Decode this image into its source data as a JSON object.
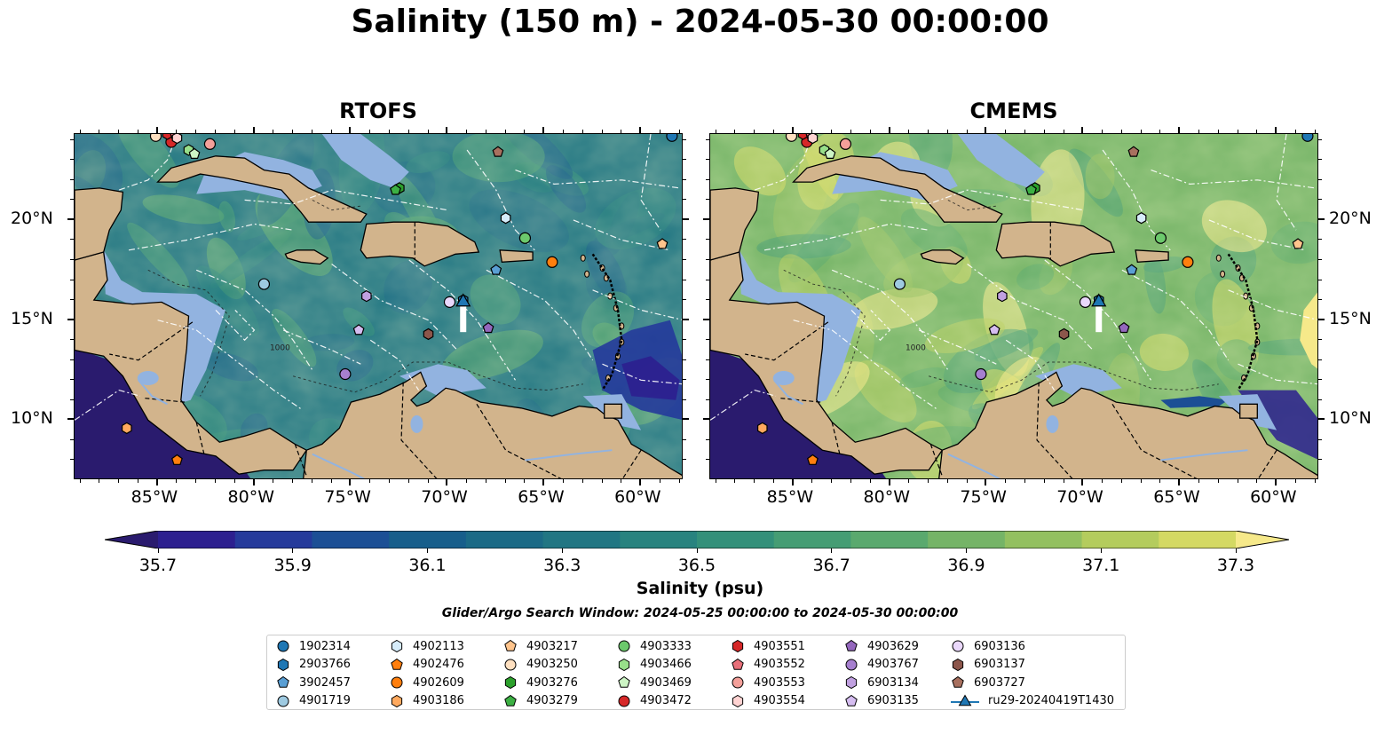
{
  "title": "Salinity (150 m) - 2024-05-30 00:00:00",
  "panels": [
    {
      "name": "RTOFS",
      "style": "rtofs"
    },
    {
      "name": "CMEMS",
      "style": "cmems"
    }
  ],
  "map": {
    "lon_range": [
      -89.3,
      -57.8
    ],
    "lat_range": [
      7.0,
      24.3
    ],
    "lon_ticks": [
      {
        "v": -85,
        "label": "85°W"
      },
      {
        "v": -80,
        "label": "80°W"
      },
      {
        "v": -75,
        "label": "75°W"
      },
      {
        "v": -70,
        "label": "70°W"
      },
      {
        "v": -65,
        "label": "65°W"
      },
      {
        "v": -60,
        "label": "60°W"
      }
    ],
    "lat_ticks": [
      {
        "v": 20,
        "label": "20°N"
      },
      {
        "v": 15,
        "label": "15°N"
      },
      {
        "v": 10,
        "label": "10°N"
      }
    ],
    "land_color": "#d2b48c",
    "shelf_color": "#92b3e0",
    "contour_label": "1000"
  },
  "colorbar": {
    "min": 35.6,
    "max": 37.4,
    "step": 0.1,
    "ticks": [
      "35.7",
      "35.9",
      "36.1",
      "36.3",
      "36.5",
      "36.7",
      "36.9",
      "37.1",
      "37.3"
    ],
    "label": "Salinity (psu)",
    "colors": [
      "#2a1b6e",
      "#2c1f8f",
      "#253a9b",
      "#1c4f95",
      "#175e8b",
      "#1b6a86",
      "#217683",
      "#28837f",
      "#33907a",
      "#459d74",
      "#5aa96e",
      "#75b467",
      "#93c060",
      "#b4cc5d",
      "#d4d963",
      "#f6e98a"
    ]
  },
  "search_window": "Glider/Argo Search Window: 2024-05-25 00:00:00 to 2024-05-30 00:00:00",
  "legend": [
    {
      "label": "1902314",
      "color": "#1f77b4",
      "marker": "circle"
    },
    {
      "label": "2903766",
      "color": "#1f77b4",
      "marker": "hexagon"
    },
    {
      "label": "3902457",
      "color": "#5a9fd4",
      "marker": "pentagon"
    },
    {
      "label": "4901719",
      "color": "#9ecae1",
      "marker": "circle"
    },
    {
      "label": "4902113",
      "color": "#d6ecfa",
      "marker": "hexagon"
    },
    {
      "label": "4902476",
      "color": "#ff7f0e",
      "marker": "pentagon"
    },
    {
      "label": "4902609",
      "color": "#ff7f0e",
      "marker": "circle"
    },
    {
      "label": "4903186",
      "color": "#ffa95e",
      "marker": "hexagon"
    },
    {
      "label": "4903217",
      "color": "#ffc48c",
      "marker": "pentagon"
    },
    {
      "label": "4903250",
      "color": "#ffe0c0",
      "marker": "circle"
    },
    {
      "label": "4903276",
      "color": "#2ca02c",
      "marker": "hexagon"
    },
    {
      "label": "4903279",
      "color": "#3cb043",
      "marker": "pentagon"
    },
    {
      "label": "4903333",
      "color": "#6cc96c",
      "marker": "circle"
    },
    {
      "label": "4903466",
      "color": "#98df8a",
      "marker": "hexagon"
    },
    {
      "label": "4903469",
      "color": "#cdf5c5",
      "marker": "pentagon"
    },
    {
      "label": "4903472",
      "color": "#d62728",
      "marker": "circle"
    },
    {
      "label": "4903551",
      "color": "#d62728",
      "marker": "hexagon"
    },
    {
      "label": "4903552",
      "color": "#e8707a",
      "marker": "pentagon"
    },
    {
      "label": "4903553",
      "color": "#f4a09a",
      "marker": "circle"
    },
    {
      "label": "4903554",
      "color": "#ffd3d2",
      "marker": "hexagon"
    },
    {
      "label": "4903629",
      "color": "#9467bd",
      "marker": "pentagon"
    },
    {
      "label": "4903767",
      "color": "#a67fcf",
      "marker": "circle"
    },
    {
      "label": "6903134",
      "color": "#c0a0e0",
      "marker": "hexagon"
    },
    {
      "label": "6903135",
      "color": "#d5bdf0",
      "marker": "pentagon"
    },
    {
      "label": "6903136",
      "color": "#ead8fb",
      "marker": "circle"
    },
    {
      "label": "6903137",
      "color": "#8c564b",
      "marker": "hexagon"
    },
    {
      "label": "6903727",
      "color": "#a8705f",
      "marker": "pentagon"
    },
    {
      "label": "ru29-20240419T1430",
      "color": "#1f77b4",
      "marker": "triangle"
    }
  ],
  "floats": [
    {
      "id": "1902314",
      "lon": -58.4,
      "lat": 24.2
    },
    {
      "id": "2903766",
      "lon": -69.2,
      "lat": 16.0
    },
    {
      "id": "3902457",
      "lon": -67.5,
      "lat": 17.5
    },
    {
      "id": "4901719",
      "lon": -79.5,
      "lat": 16.8
    },
    {
      "id": "4902113",
      "lon": -67.0,
      "lat": 20.1
    },
    {
      "id": "4902476",
      "lon": -84.0,
      "lat": 8.0
    },
    {
      "id": "4902609",
      "lon": -64.6,
      "lat": 17.9
    },
    {
      "id": "4903186",
      "lon": -86.6,
      "lat": 9.6
    },
    {
      "id": "4903217",
      "lon": -58.9,
      "lat": 18.8
    },
    {
      "id": "4903250",
      "lon": -85.1,
      "lat": 24.2
    },
    {
      "id": "4903276",
      "lon": -72.5,
      "lat": 21.6
    },
    {
      "id": "4903279",
      "lon": -72.7,
      "lat": 21.5
    },
    {
      "id": "4903333",
      "lon": -66.0,
      "lat": 19.1
    },
    {
      "id": "4903466",
      "lon": -83.4,
      "lat": 23.5
    },
    {
      "id": "4903469",
      "lon": -83.1,
      "lat": 23.3
    },
    {
      "id": "4903472",
      "lon": -84.3,
      "lat": 23.9
    },
    {
      "id": "4903551",
      "lon": -84.5,
      "lat": 24.3
    },
    {
      "id": "4903552",
      "lon": -84.1,
      "lat": 24.3
    },
    {
      "id": "4903553",
      "lon": -82.3,
      "lat": 23.8
    },
    {
      "id": "4903554",
      "lon": -84.0,
      "lat": 24.1
    },
    {
      "id": "4903629",
      "lon": -67.9,
      "lat": 14.6
    },
    {
      "id": "4903767",
      "lon": -75.3,
      "lat": 12.3
    },
    {
      "id": "6903134",
      "lon": -74.2,
      "lat": 16.2
    },
    {
      "id": "6903135",
      "lon": -74.6,
      "lat": 14.5
    },
    {
      "id": "6903136",
      "lon": -69.9,
      "lat": 15.9
    },
    {
      "id": "6903137",
      "lon": -71.0,
      "lat": 14.3
    },
    {
      "id": "6903727",
      "lon": -67.4,
      "lat": 23.4
    }
  ],
  "glider": {
    "lon": -69.2,
    "lat": 15.9,
    "track_end_lat": 14.4
  }
}
